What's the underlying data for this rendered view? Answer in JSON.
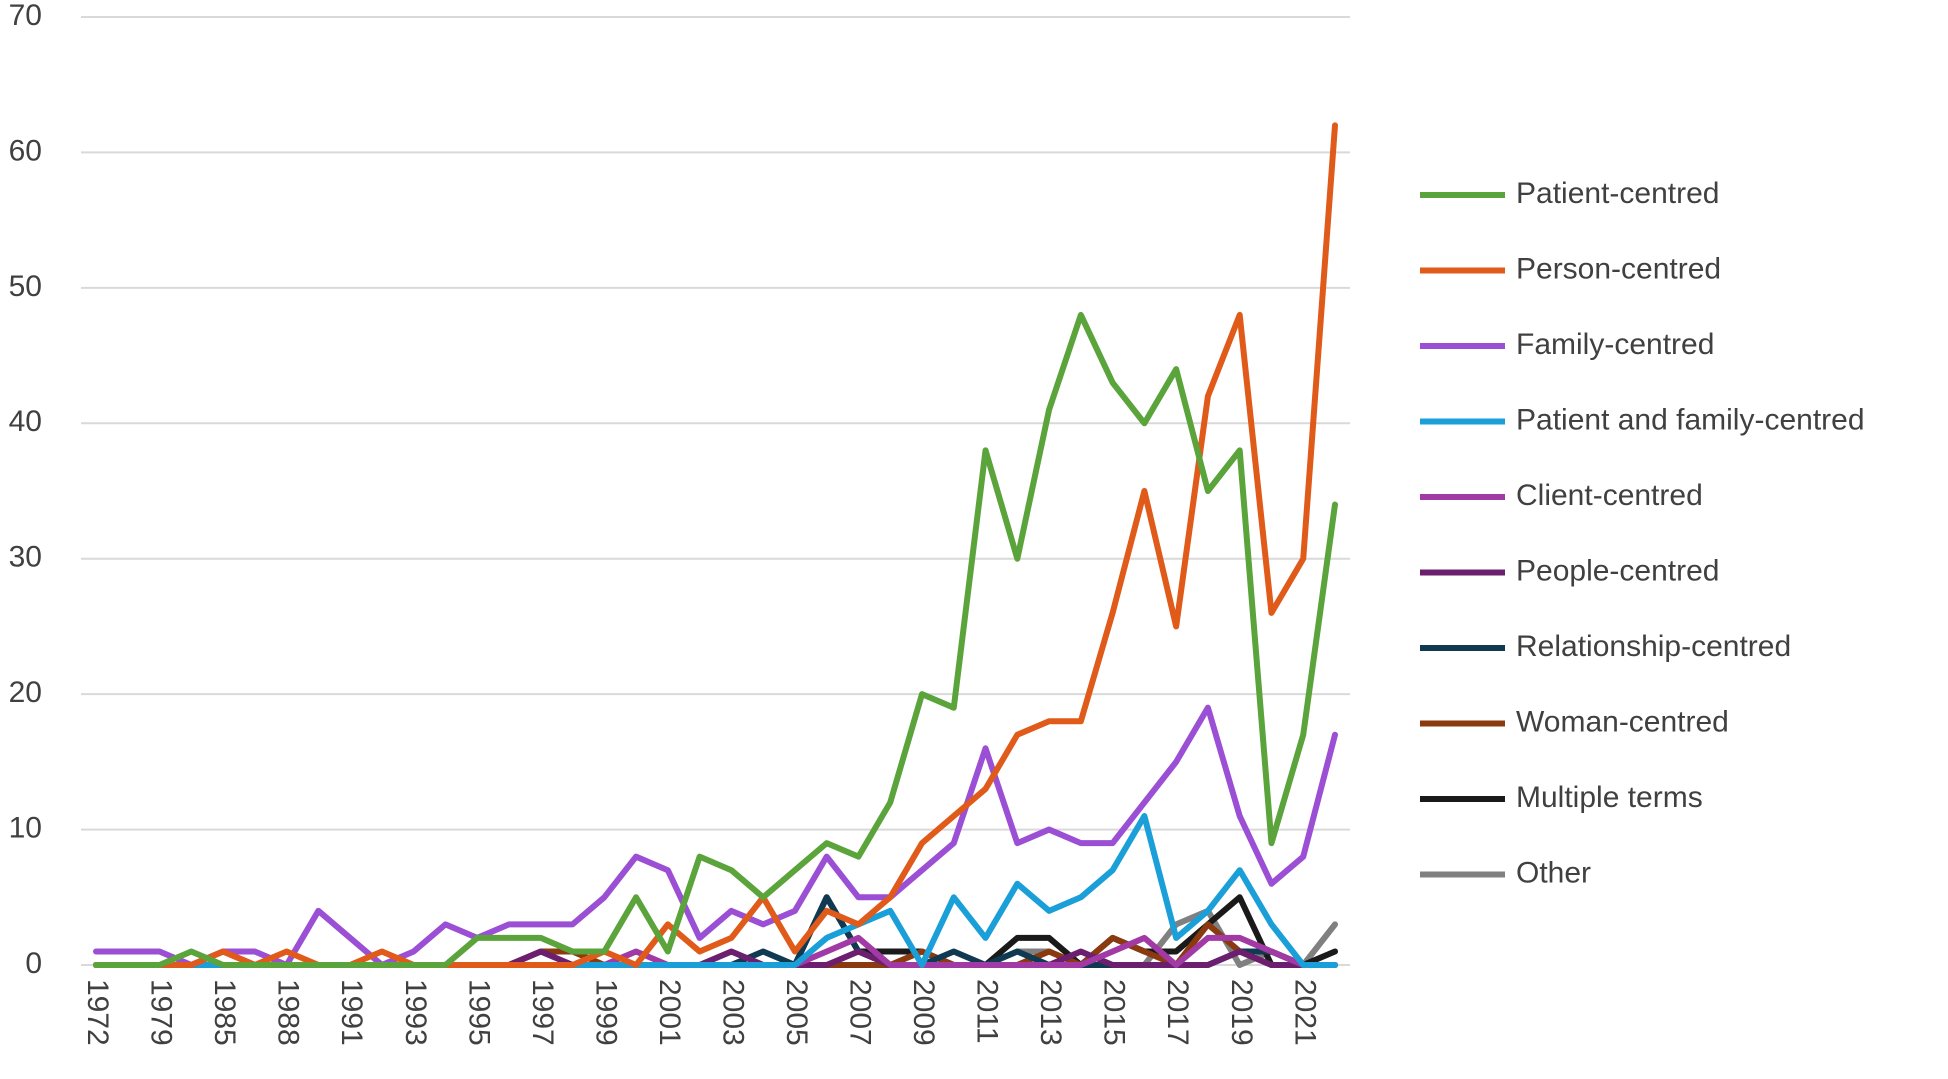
{
  "chart_data": {
    "type": "line",
    "categories": [
      "1972",
      null,
      "1979",
      null,
      "1985",
      null,
      "1988",
      null,
      "1991",
      null,
      "1993",
      null,
      "1995",
      null,
      "1997",
      null,
      "1999",
      null,
      "2001",
      null,
      "2003",
      null,
      "2005",
      null,
      "2007",
      null,
      "2009",
      null,
      "2011",
      null,
      "2013",
      null,
      "2015",
      null,
      "2017",
      null,
      "2019",
      null,
      "2021",
      null
    ],
    "ylim": [
      0,
      70
    ],
    "yticks": [
      0,
      10,
      20,
      30,
      40,
      50,
      60,
      70
    ],
    "grid": true,
    "legend": "right",
    "series": [
      {
        "name": "Patient-centred",
        "color": "#5ba33b",
        "values": [
          0,
          0,
          0,
          1,
          0,
          0,
          0,
          0,
          0,
          0,
          0,
          0,
          2,
          2,
          2,
          1,
          1,
          5,
          1,
          8,
          7,
          5,
          7,
          9,
          8,
          12,
          20,
          19,
          38,
          30,
          41,
          48,
          43,
          40,
          44,
          35,
          38,
          9,
          17,
          34
        ]
      },
      {
        "name": "Person-centred",
        "color": "#e05a1a",
        "values": [
          0,
          0,
          0,
          0,
          1,
          0,
          1,
          0,
          0,
          1,
          0,
          0,
          0,
          0,
          0,
          0,
          1,
          0,
          3,
          1,
          2,
          5,
          1,
          4,
          3,
          5,
          9,
          11,
          13,
          17,
          18,
          18,
          26,
          35,
          25,
          42,
          48,
          26,
          30,
          62
        ]
      },
      {
        "name": "Family-centred",
        "color": "#9b4fd4",
        "values": [
          1,
          1,
          1,
          0,
          1,
          1,
          0,
          4,
          2,
          0,
          1,
          3,
          2,
          3,
          3,
          3,
          5,
          8,
          7,
          2,
          4,
          3,
          4,
          8,
          5,
          5,
          7,
          9,
          16,
          9,
          10,
          9,
          9,
          12,
          15,
          19,
          11,
          6,
          8,
          17
        ]
      },
      {
        "name": "Patient and family-centred",
        "color": "#1a9fd8",
        "values": [
          0,
          0,
          0,
          0,
          0,
          0,
          0,
          0,
          0,
          0,
          0,
          0,
          0,
          0,
          0,
          0,
          0,
          0,
          0,
          0,
          0,
          0,
          0,
          2,
          3,
          4,
          0,
          5,
          2,
          6,
          4,
          5,
          7,
          11,
          2,
          4,
          7,
          3,
          0,
          0
        ]
      },
      {
        "name": "Client-centred",
        "color": "#a23aa5",
        "values": [
          0,
          0,
          0,
          0,
          1,
          0,
          0,
          0,
          0,
          0,
          0,
          0,
          0,
          0,
          0,
          0,
          0,
          1,
          0,
          0,
          0,
          0,
          0,
          1,
          2,
          0,
          0,
          0,
          0,
          0,
          0,
          0,
          1,
          2,
          0,
          2,
          2,
          1,
          0,
          0
        ]
      },
      {
        "name": "People-centred",
        "color": "#6b1f6e",
        "values": [
          0,
          0,
          0,
          0,
          0,
          0,
          0,
          0,
          0,
          0,
          0,
          0,
          0,
          0,
          1,
          0,
          0,
          0,
          0,
          0,
          1,
          0,
          0,
          0,
          1,
          0,
          0,
          0,
          0,
          0,
          0,
          1,
          0,
          0,
          0,
          0,
          1,
          0,
          0,
          0
        ]
      },
      {
        "name": "Relationship-centred",
        "color": "#0f3a52",
        "values": [
          0,
          0,
          0,
          0,
          0,
          0,
          0,
          0,
          0,
          0,
          0,
          0,
          0,
          0,
          0,
          0,
          0,
          0,
          0,
          0,
          0,
          1,
          0,
          5,
          1,
          0,
          0,
          1,
          0,
          1,
          0,
          0,
          0,
          0,
          0,
          0,
          1,
          1,
          0,
          0
        ]
      },
      {
        "name": "Woman-centred",
        "color": "#8b3a0f",
        "values": [
          0,
          0,
          0,
          0,
          0,
          0,
          0,
          0,
          0,
          0,
          0,
          0,
          0,
          0,
          1,
          1,
          0,
          0,
          0,
          0,
          0,
          0,
          0,
          0,
          0,
          0,
          1,
          0,
          0,
          0,
          1,
          0,
          2,
          1,
          0,
          3,
          1,
          0,
          0,
          0
        ]
      },
      {
        "name": "Multiple terms",
        "color": "#1a1a1a",
        "values": [
          0,
          0,
          0,
          0,
          0,
          0,
          0,
          0,
          0,
          0,
          0,
          0,
          0,
          0,
          0,
          0,
          0,
          0,
          0,
          0,
          0,
          0,
          0,
          5,
          1,
          1,
          1,
          0,
          0,
          2,
          2,
          0,
          2,
          1,
          1,
          3,
          5,
          0,
          0,
          1
        ]
      },
      {
        "name": "Other",
        "color": "#808080",
        "values": [
          0,
          0,
          0,
          0,
          0,
          0,
          0,
          0,
          0,
          0,
          0,
          0,
          0,
          0,
          0,
          0,
          0,
          0,
          0,
          0,
          0,
          0,
          0,
          0,
          0,
          0,
          0,
          0,
          0,
          1,
          1,
          0,
          0,
          0,
          3,
          4,
          0,
          1,
          0,
          3
        ]
      }
    ]
  }
}
